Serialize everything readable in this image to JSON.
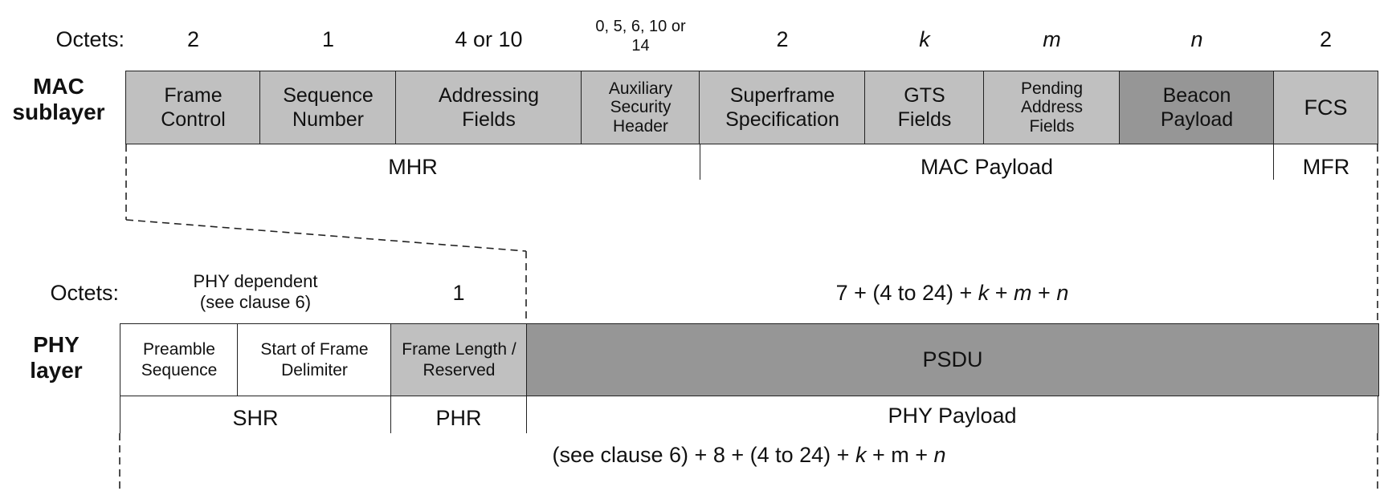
{
  "mac": {
    "octets_label": "Octets:",
    "layer_label_1": "MAC",
    "layer_label_2": "sublayer",
    "octets": {
      "frame_control": "2",
      "sequence_number": "1",
      "addressing": "4 or 10",
      "aux_security_1": "0, 5, 6, 10 or",
      "aux_security_2": "14",
      "superframe": "2",
      "gts": "k",
      "pending": "m",
      "beacon": "n",
      "fcs": "2"
    },
    "fields": {
      "frame_control_1": "Frame",
      "frame_control_2": "Control",
      "sequence_number_1": "Sequence",
      "sequence_number_2": "Number",
      "addressing_1": "Addressing",
      "addressing_2": "Fields",
      "aux_security_1": "Auxiliary",
      "aux_security_2": "Security",
      "aux_security_3": "Header",
      "superframe_1": "Superframe",
      "superframe_2": "Specification",
      "gts_1": "GTS",
      "gts_2": "Fields",
      "pending_1": "Pending",
      "pending_2": "Address",
      "pending_3": "Fields",
      "beacon_1": "Beacon",
      "beacon_2": "Payload",
      "fcs": "FCS"
    },
    "groups": {
      "mhr": "MHR",
      "mac_payload": "MAC Payload",
      "mfr": "MFR"
    }
  },
  "phy": {
    "octets_label": "Octets:",
    "layer_label_1": "PHY",
    "layer_label_2": "layer",
    "octets": {
      "shr_1": "PHY dependent",
      "shr_2": "(see clause 6)",
      "phr": "1",
      "psdu_a": "7 + (4 to 24) + ",
      "psdu_k": "k",
      "psdu_b": " + ",
      "psdu_m": "m",
      "psdu_c": " + ",
      "psdu_n": "n"
    },
    "fields": {
      "preamble_1": "Preamble",
      "preamble_2": "Sequence",
      "sfd_1": "Start of Frame",
      "sfd_2": "Delimiter",
      "frame_length_1": "Frame Length /",
      "frame_length_2": "Reserved",
      "psdu": "PSDU"
    },
    "groups": {
      "shr": "SHR",
      "phr": "PHR",
      "phy_payload": "PHY Payload"
    },
    "total": {
      "a": "(see clause 6) + 8 + (4 to 24) + ",
      "k": "k",
      "b": " + m + ",
      "n": "n"
    }
  },
  "colors": {
    "field_gray": "#c0c0c0",
    "payload_dark": "#969696",
    "line": "#222222"
  }
}
